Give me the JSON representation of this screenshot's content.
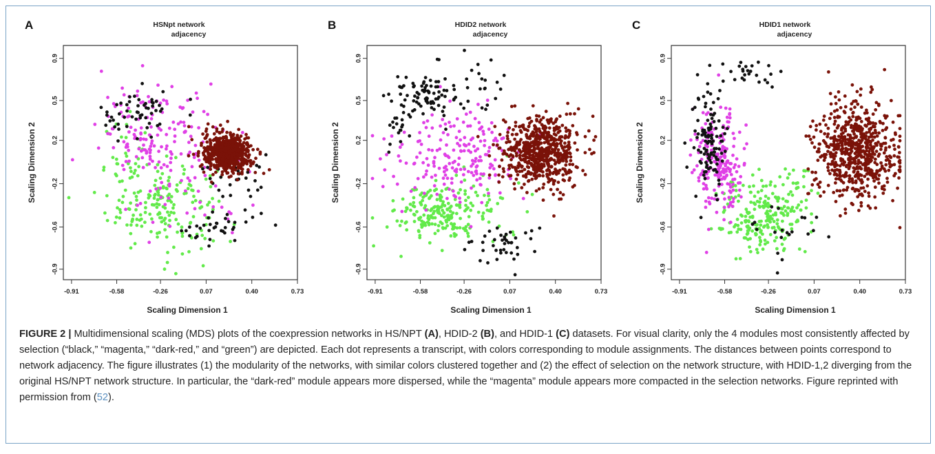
{
  "colors": {
    "black": "#111111",
    "magenta": "#e040e6",
    "dark-red": "#7a1208",
    "green": "#62ea4a",
    "border": "#7aa3c7",
    "reference": "#5a8fc0"
  },
  "chart_data": [
    {
      "type": "scatter",
      "panel_label": "A",
      "title_line1": "HSNpt network",
      "title_line2": "adjacency",
      "xlabel": "Scaling Dimension 1",
      "ylabel": "Scaling Dimension 2",
      "xlim": [
        -0.95,
        0.76
      ],
      "ylim": [
        -0.95,
        0.95
      ],
      "x_ticks": [
        "-0.91",
        "-0.58",
        "-0.26",
        "0.07",
        "0.40",
        "0.73"
      ],
      "y_ticks": [
        "0.9",
        "0.5",
        "0.2",
        "-0.2",
        "-0.6",
        "-0.9"
      ],
      "series": [
        {
          "color_key": "black",
          "clusters": [
            {
              "cx": -0.4,
              "cy": 0.4,
              "sx": 0.14,
              "sy": 0.1,
              "n": 55
            },
            {
              "cx": 0.15,
              "cy": -0.52,
              "sx": 0.18,
              "sy": 0.08,
              "n": 35
            },
            {
              "cx": 0.32,
              "cy": -0.1,
              "sx": 0.12,
              "sy": 0.12,
              "n": 25
            }
          ]
        },
        {
          "color_key": "magenta",
          "clusters": [
            {
              "cx": -0.25,
              "cy": 0.25,
              "sx": 0.22,
              "sy": 0.18,
              "n": 150
            },
            {
              "cx": -0.1,
              "cy": -0.3,
              "sx": 0.25,
              "sy": 0.2,
              "n": 40
            }
          ]
        },
        {
          "color_key": "green",
          "clusters": [
            {
              "cx": -0.22,
              "cy": -0.35,
              "sx": 0.2,
              "sy": 0.18,
              "n": 170
            },
            {
              "cx": -0.45,
              "cy": -0.05,
              "sx": 0.1,
              "sy": 0.2,
              "n": 40
            }
          ]
        },
        {
          "color_key": "dark-red",
          "clusters": [
            {
              "cx": 0.25,
              "cy": 0.08,
              "sx": 0.09,
              "sy": 0.08,
              "n": 600
            }
          ]
        }
      ]
    },
    {
      "type": "scatter",
      "panel_label": "B",
      "title_line1": "HDID2 network",
      "title_line2": "adjacency",
      "xlabel": "Scaling Dimension 1",
      "ylabel": "Scaling Dimension 2",
      "xlim": [
        -0.95,
        0.76
      ],
      "ylim": [
        -0.95,
        0.95
      ],
      "x_ticks": [
        "-0.91",
        "-0.58",
        "-0.26",
        "0.07",
        "0.40",
        "0.73"
      ],
      "y_ticks": [
        "0.9",
        "0.5",
        "0.2",
        "-0.2",
        "-0.6",
        "-0.9"
      ],
      "series": [
        {
          "color_key": "black",
          "clusters": [
            {
              "cx": -0.55,
              "cy": 0.55,
              "sx": 0.12,
              "sy": 0.08,
              "n": 80
            },
            {
              "cx": -0.2,
              "cy": 0.65,
              "sx": 0.15,
              "sy": 0.12,
              "n": 25
            },
            {
              "cx": -0.75,
              "cy": 0.3,
              "sx": 0.06,
              "sy": 0.1,
              "n": 20
            },
            {
              "cx": 0.05,
              "cy": -0.68,
              "sx": 0.12,
              "sy": 0.08,
              "n": 40
            }
          ]
        },
        {
          "color_key": "magenta",
          "clusters": [
            {
              "cx": -0.3,
              "cy": 0.05,
              "sx": 0.25,
              "sy": 0.18,
              "n": 200
            }
          ]
        },
        {
          "color_key": "green",
          "clusters": [
            {
              "cx": -0.45,
              "cy": -0.4,
              "sx": 0.14,
              "sy": 0.12,
              "n": 170
            },
            {
              "cx": -0.15,
              "cy": -0.35,
              "sx": 0.18,
              "sy": 0.15,
              "n": 50
            }
          ]
        },
        {
          "color_key": "dark-red",
          "clusters": [
            {
              "cx": 0.32,
              "cy": 0.08,
              "sx": 0.14,
              "sy": 0.14,
              "n": 650
            }
          ]
        }
      ]
    },
    {
      "type": "scatter",
      "panel_label": "C",
      "title_line1": "HDID1 network",
      "title_line2": "adjacency",
      "xlabel": "Scaling Dimension 1",
      "ylabel": "Scaling Dimension 2",
      "xlim": [
        -0.95,
        0.76
      ],
      "ylim": [
        -0.95,
        0.95
      ],
      "x_ticks": [
        "-0.91",
        "-0.58",
        "-0.26",
        "0.07",
        "0.40",
        "0.73"
      ],
      "y_ticks": [
        "0.9",
        "0.5",
        "0.2",
        "-0.2",
        "-0.6",
        "-0.9"
      ],
      "series": [
        {
          "color_key": "black",
          "clusters": [
            {
              "cx": -0.68,
              "cy": 0.15,
              "sx": 0.06,
              "sy": 0.22,
              "n": 110
            },
            {
              "cx": -0.4,
              "cy": 0.75,
              "sx": 0.12,
              "sy": 0.06,
              "n": 25
            },
            {
              "cx": -0.15,
              "cy": -0.55,
              "sx": 0.2,
              "sy": 0.1,
              "n": 20
            }
          ]
        },
        {
          "color_key": "magenta",
          "clusters": [
            {
              "cx": -0.6,
              "cy": 0.0,
              "sx": 0.09,
              "sy": 0.22,
              "n": 200
            }
          ]
        },
        {
          "color_key": "green",
          "clusters": [
            {
              "cx": -0.28,
              "cy": -0.45,
              "sx": 0.16,
              "sy": 0.15,
              "n": 220
            },
            {
              "cx": -0.05,
              "cy": -0.2,
              "sx": 0.08,
              "sy": 0.1,
              "n": 25
            }
          ]
        },
        {
          "color_key": "dark-red",
          "clusters": [
            {
              "cx": 0.4,
              "cy": 0.1,
              "sx": 0.15,
              "sy": 0.2,
              "n": 650
            }
          ]
        }
      ]
    }
  ],
  "caption": {
    "label": "FIGURE 2 |",
    "s1": " Multidimensional scaling (MDS) plots of the coexpression networks in HS/NPT ",
    "b1": "(A)",
    "s2": ", HDID-2 ",
    "b2": "(B)",
    "s3": ", and HDID-1 ",
    "b3": "(C)",
    "s4": " datasets. For visual clarity, only the 4 modules most consistently affected by selection (“black,” “magenta,” “dark-red,” and “green”) are depicted. Each dot represents a transcript, with colors corresponding to module assignments. The distances between points correspond to network adjacency. The figure illustrates (1) the modularity of the networks, with similar colors clustered together and (2) the effect of selection on the network structure, with HDID-1,2 diverging from the original HS/NPT network structure. In particular, the “dark-red” module appears more dispersed, while the “magenta” module appears more compacted in the selection networks. Figure reprinted with permission from (",
    "ref": "52",
    "s5": ")."
  }
}
